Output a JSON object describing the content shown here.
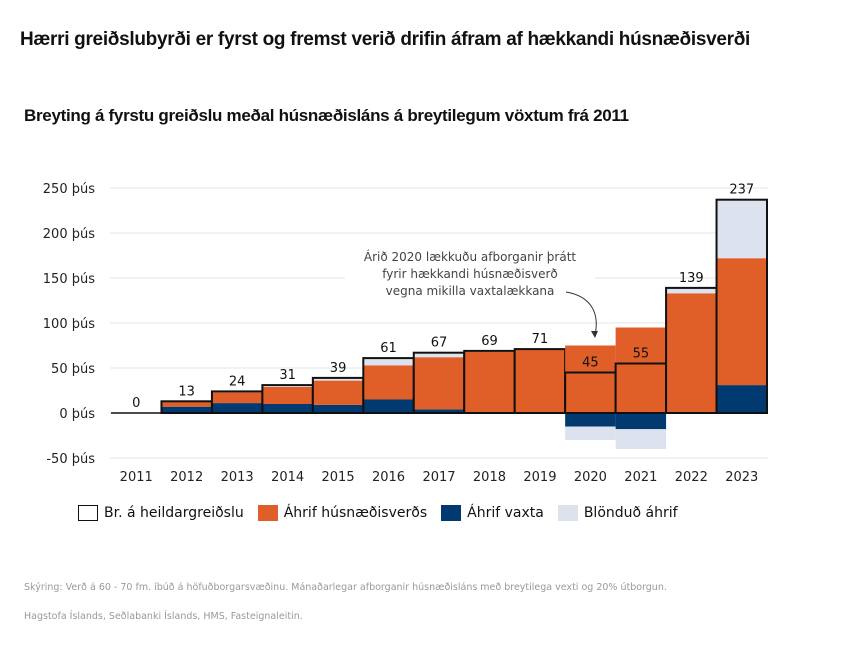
{
  "header": {
    "title": "Hærri greiðslubyrði er fyrst og fremst verið drifin áfram af hækkandi húsnæðisverði",
    "subtitle": "Breyting á fyrstu greiðslu meðal húsnæðisláns á breytilegum vöxtum frá 2011"
  },
  "colors": {
    "housing": "#e05f28",
    "rates": "#003a70",
    "mixed": "#dce3ee",
    "total_outline": "#111111",
    "grid": "#e6e6e6"
  },
  "legend": [
    {
      "key": "total",
      "label": "Br. á heildargreiðslu"
    },
    {
      "key": "housing",
      "label": "Áhrif húsnæðisverðs"
    },
    {
      "key": "rates",
      "label": "Áhrif vaxta"
    },
    {
      "key": "mixed",
      "label": "Blönduð áhrif"
    }
  ],
  "annotation": {
    "lines": [
      "Árið 2020 lækkuðu afborganir þrátt",
      "fyrir hækkandi húsnæðisverð",
      "vegna mikilla vaxtalækkana"
    ]
  },
  "footer": {
    "note": "Skýring: Verð á 60 - 70 fm. íbúð á höfuðborgarsvæðinu. Mánaðarlegar afborganir húsnæðisláns með breytilega vexti og 20% útborgun.",
    "source": "Hagstofa Íslands, Seðlabanki Íslands, HMS, Fasteignaleitin."
  },
  "chart_data": {
    "type": "bar",
    "stacked": true,
    "title": "Breyting á fyrstu greiðslu meðal húsnæðisláns á breytilegum vöxtum frá 2011",
    "xlabel": "",
    "ylabel": "",
    "ylim": [
      -50,
      250
    ],
    "yticks": [
      -50,
      0,
      50,
      100,
      150,
      200,
      250
    ],
    "ytick_labels": [
      "-50 þús",
      "0 þús",
      "50 þús",
      "100 þús",
      "150 þús",
      "200 þús",
      "250 þús"
    ],
    "grid": true,
    "legend_position": "bottom",
    "categories": [
      "2011",
      "2012",
      "2013",
      "2014",
      "2015",
      "2016",
      "2017",
      "2018",
      "2019",
      "2020",
      "2021",
      "2022",
      "2023"
    ],
    "series": [
      {
        "name": "Áhrif vaxta",
        "key": "rates",
        "values": [
          0,
          7,
          11,
          10,
          9,
          15,
          4,
          1,
          0,
          -15,
          -18,
          1,
          31
        ]
      },
      {
        "name": "Áhrif húsnæðisverðs",
        "key": "housing",
        "values": [
          0,
          6,
          12,
          19,
          27,
          38,
          58,
          67,
          71,
          75,
          95,
          132,
          141
        ]
      },
      {
        "name": "Blönduð áhrif",
        "key": "mixed",
        "values": [
          0,
          0,
          1,
          2,
          3,
          8,
          5,
          1,
          0,
          -15,
          -22,
          6,
          65
        ]
      },
      {
        "name": "Br. á heildargreiðslu",
        "key": "total",
        "values": [
          0,
          13,
          24,
          31,
          39,
          61,
          67,
          69,
          71,
          45,
          55,
          139,
          237
        ]
      }
    ],
    "data_labels": [
      "0",
      "13",
      "24",
      "31",
      "39",
      "61",
      "67",
      "69",
      "71",
      "45",
      "55",
      "139",
      "237"
    ]
  }
}
